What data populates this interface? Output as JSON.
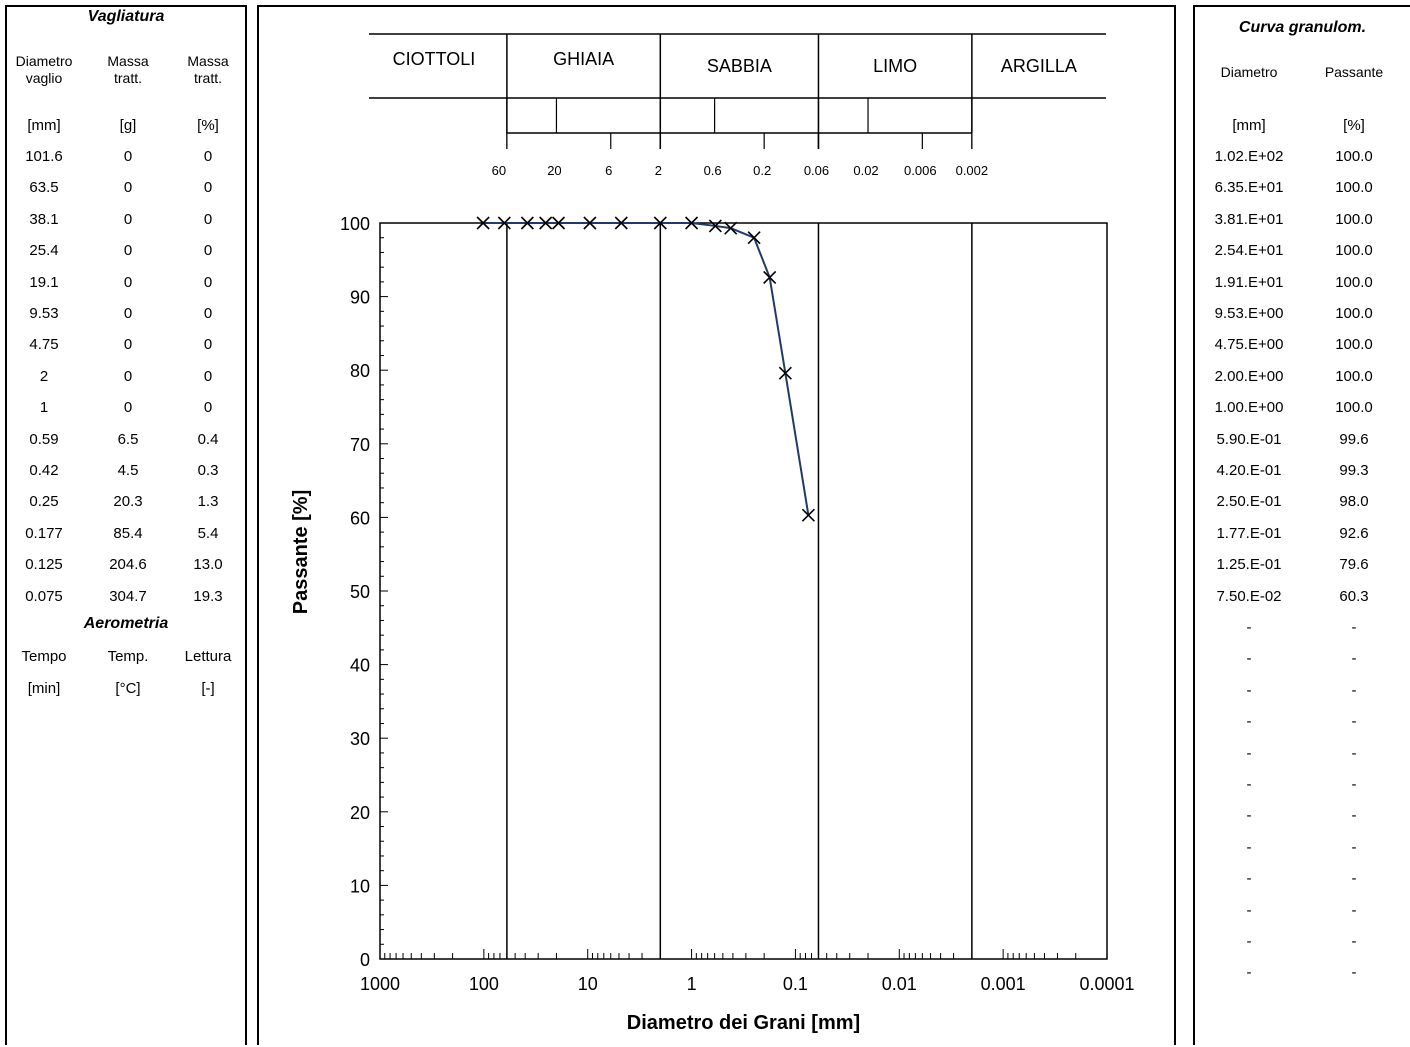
{
  "left": {
    "title": "Vagliatura",
    "headers": [
      [
        "Diametro",
        "vaglio"
      ],
      [
        "Massa",
        "tratt."
      ],
      [
        "Massa",
        "tratt."
      ]
    ],
    "units": [
      "[mm]",
      "[g]",
      "[%]"
    ],
    "rows": [
      [
        "101.6",
        "0",
        "0"
      ],
      [
        "63.5",
        "0",
        "0"
      ],
      [
        "38.1",
        "0",
        "0"
      ],
      [
        "25.4",
        "0",
        "0"
      ],
      [
        "19.1",
        "0",
        "0"
      ],
      [
        "9.53",
        "0",
        "0"
      ],
      [
        "4.75",
        "0",
        "0"
      ],
      [
        "2",
        "0",
        "0"
      ],
      [
        "1",
        "0",
        "0"
      ],
      [
        "0.59",
        "6.5",
        "0.4"
      ],
      [
        "0.42",
        "4.5",
        "0.3"
      ],
      [
        "0.25",
        "20.3",
        "1.3"
      ],
      [
        "0.177",
        "85.4",
        "5.4"
      ],
      [
        "0.125",
        "204.6",
        "13.0"
      ],
      [
        "0.075",
        "304.7",
        "19.3"
      ]
    ],
    "aero_title": "Aerometria",
    "aero_headers": [
      "Tempo",
      "Temp.",
      "Lettura"
    ],
    "aero_units": [
      "[min]",
      "[°C]",
      "[-]"
    ]
  },
  "right": {
    "title": "Curva granulom.",
    "headers": [
      "Diametro",
      "Passante"
    ],
    "units": [
      "[mm]",
      "[%]"
    ],
    "rows": [
      [
        "1.02.E+02",
        "100.0"
      ],
      [
        "6.35.E+01",
        "100.0"
      ],
      [
        "3.81.E+01",
        "100.0"
      ],
      [
        "2.54.E+01",
        "100.0"
      ],
      [
        "1.91.E+01",
        "100.0"
      ],
      [
        "9.53.E+00",
        "100.0"
      ],
      [
        "4.75.E+00",
        "100.0"
      ],
      [
        "2.00.E+00",
        "100.0"
      ],
      [
        "1.00.E+00",
        "100.0"
      ],
      [
        "5.90.E-01",
        "99.6"
      ],
      [
        "4.20.E-01",
        "99.3"
      ],
      [
        "2.50.E-01",
        "98.0"
      ],
      [
        "1.77.E-01",
        "92.6"
      ],
      [
        "1.25.E-01",
        "79.6"
      ],
      [
        "7.50.E-02",
        "60.3"
      ],
      [
        "-",
        "-"
      ],
      [
        "-",
        "-"
      ],
      [
        "-",
        "-"
      ],
      [
        "-",
        "-"
      ],
      [
        "-",
        "-"
      ],
      [
        "-",
        "-"
      ],
      [
        "-",
        "-"
      ],
      [
        "-",
        "-"
      ],
      [
        "-",
        "-"
      ],
      [
        "-",
        "-"
      ],
      [
        "-",
        "-"
      ],
      [
        "-",
        "-"
      ]
    ]
  },
  "classification": {
    "bands": [
      "CIOTTOLI",
      "GHIAIA",
      "SABBIA",
      "LIMO",
      "ARGILLA"
    ],
    "boundaries": [
      60,
      2,
      0.06,
      0.002
    ],
    "sub_ticks": [
      60,
      20,
      6,
      2,
      0.6,
      0.2,
      0.06,
      0.02,
      0.006,
      0.002
    ],
    "sub_labels": [
      "60",
      "20",
      "6",
      "2",
      "0.6",
      "0.2",
      "0.06",
      "0.02",
      "0.006",
      "0.002"
    ]
  },
  "chart_data": {
    "type": "scatter",
    "xlabel": "Diametro dei Grani [mm]",
    "ylabel": "Passante [%]",
    "x_scale": "log",
    "x_reversed": true,
    "xlim": [
      1000,
      0.0001
    ],
    "ylim": [
      0,
      100
    ],
    "x_ticks": [
      1000,
      100,
      10,
      1,
      0.1,
      0.01,
      0.001,
      0.0001
    ],
    "x_tick_labels": [
      "1000",
      "100",
      "10",
      "1",
      "0.1",
      "0.01",
      "0.001",
      "0.0001"
    ],
    "y_ticks": [
      0,
      10,
      20,
      30,
      40,
      50,
      60,
      70,
      80,
      90,
      100
    ],
    "y_tick_labels": [
      "0",
      "10",
      "20",
      "30",
      "40",
      "50",
      "60",
      "70",
      "80",
      "90",
      "100"
    ],
    "vertical_lines": [
      60,
      2,
      0.06,
      0.002
    ],
    "x": [
      101.6,
      63.5,
      38.1,
      25.4,
      19.1,
      9.53,
      4.75,
      2,
      1,
      0.59,
      0.42,
      0.25,
      0.177,
      0.125,
      0.075
    ],
    "y": [
      100,
      100,
      100,
      100,
      100,
      100,
      100,
      100,
      100,
      99.6,
      99.3,
      98.0,
      92.6,
      79.6,
      60.3
    ],
    "line_color": "#1f3a6b",
    "marker_color": "#000000"
  }
}
